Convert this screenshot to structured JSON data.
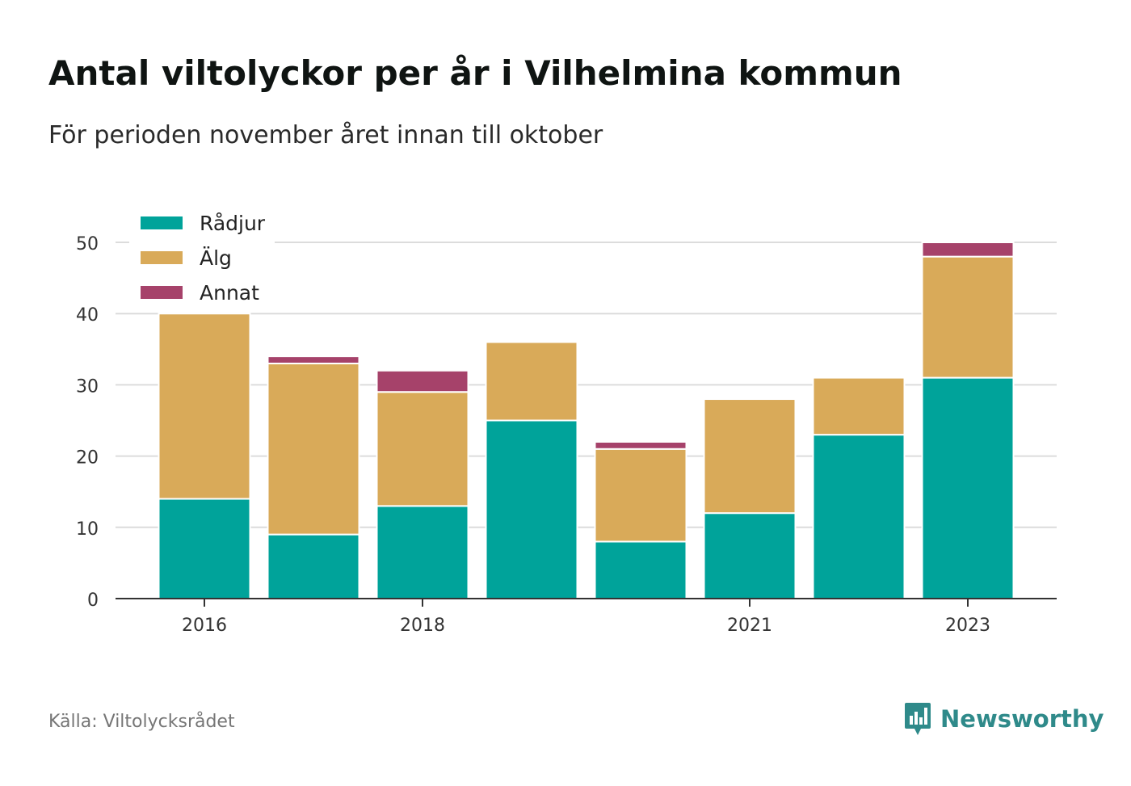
{
  "chart_data": {
    "type": "bar",
    "stacked": true,
    "title": "Antal viltolyckor per år i Vilhelmina kommun",
    "subtitle": "För perioden november året innan till oktober",
    "categories": [
      "2016",
      "2017",
      "2018",
      "2019",
      "2020",
      "2021",
      "2022",
      "2023"
    ],
    "x_tick_labels": [
      "2016",
      "",
      "2018",
      "",
      "",
      "2021",
      "",
      "2023"
    ],
    "series": [
      {
        "name": "Rådjur",
        "color": "#00a39a",
        "values": [
          14,
          9,
          13,
          25,
          8,
          12,
          23,
          31
        ]
      },
      {
        "name": "Älg",
        "color": "#d9aa59",
        "values": [
          26,
          24,
          16,
          11,
          13,
          16,
          8,
          17
        ]
      },
      {
        "name": "Annat",
        "color": "#a6426a",
        "values": [
          0,
          1,
          3,
          0,
          1,
          0,
          0,
          2
        ]
      }
    ],
    "ylim": [
      0,
      50
    ],
    "yticks": [
      0,
      10,
      20,
      30,
      40,
      50
    ],
    "grid": true,
    "legend_position": "top-left"
  },
  "source": "Källa: Viltolycksrådet",
  "brand": "Newsworthy",
  "brand_icon": "newsworthy-logo-icon"
}
